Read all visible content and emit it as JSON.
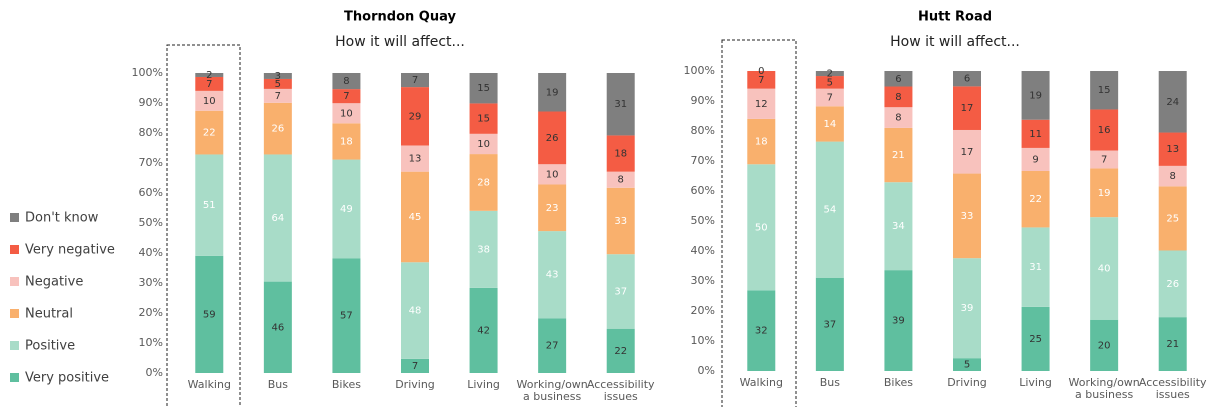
{
  "chart_data": [
    {
      "type": "bar",
      "stacking": "percent",
      "title": "Thorndon Quay",
      "subtitle": "How it will affect...",
      "categories": [
        "Walking",
        "Bus",
        "Bikes",
        "Driving",
        "Living",
        "Working/own a business",
        "Accessibility issues"
      ],
      "ylim": [
        0,
        100
      ],
      "yticks": [
        {
          "value": 0,
          "label": "0%"
        },
        {
          "value": 10,
          "label": "10%"
        },
        {
          "value": 20,
          "label": "20%"
        },
        {
          "value": 30,
          "label": "30%"
        },
        {
          "value": 40,
          "label": "40%"
        },
        {
          "value": 50,
          "label": "50%"
        },
        {
          "value": 60,
          "label": "60%"
        },
        {
          "value": 70,
          "label": "70%"
        },
        {
          "value": 80,
          "label": "80%"
        },
        {
          "value": 90,
          "label": "90%"
        },
        {
          "value": 100,
          "label": "100%"
        }
      ],
      "series": [
        {
          "name": "Very positive",
          "color": "#5fbf9f",
          "values": [
            59,
            46,
            57,
            7,
            42,
            27,
            22
          ]
        },
        {
          "name": "Positive",
          "color": "#a8dcc8",
          "values": [
            51,
            64,
            49,
            48,
            38,
            43,
            37
          ]
        },
        {
          "name": "Neutral",
          "color": "#f9b06d",
          "values": [
            22,
            26,
            18,
            45,
            28,
            23,
            33
          ]
        },
        {
          "name": "Negative",
          "color": "#f8c2bd",
          "values": [
            10,
            7,
            10,
            13,
            10,
            10,
            8
          ]
        },
        {
          "name": "Very negative",
          "color": "#f45c44",
          "values": [
            7,
            5,
            7,
            29,
            15,
            26,
            18
          ]
        },
        {
          "name": "Don't know",
          "color": "#7f7f7f",
          "values": [
            2,
            3,
            8,
            7,
            15,
            19,
            31
          ]
        }
      ]
    },
    {
      "type": "bar",
      "stacking": "percent",
      "title": "Hutt Road",
      "subtitle": "How it will affect...",
      "categories": [
        "Walking",
        "Bus",
        "Bikes",
        "Driving",
        "Living",
        "Working/own a business",
        "Accessibility issues"
      ],
      "ylim": [
        0,
        100
      ],
      "yticks": [
        {
          "value": 0,
          "label": "0%"
        },
        {
          "value": 10,
          "label": "10%"
        },
        {
          "value": 20,
          "label": "20%"
        },
        {
          "value": 30,
          "label": "30%"
        },
        {
          "value": 40,
          "label": "40%"
        },
        {
          "value": 50,
          "label": "50%"
        },
        {
          "value": 60,
          "label": "60%"
        },
        {
          "value": 70,
          "label": "70%"
        },
        {
          "value": 80,
          "label": "80%"
        },
        {
          "value": 90,
          "label": "90%"
        },
        {
          "value": 100,
          "label": "100%"
        }
      ],
      "series": [
        {
          "values": [
            32,
            37,
            39,
            5,
            25,
            20,
            21
          ]
        },
        {
          "values": [
            50,
            54,
            34,
            39,
            31,
            40,
            26
          ]
        },
        {
          "values": [
            18,
            14,
            21,
            33,
            22,
            19,
            25
          ]
        },
        {
          "values": [
            12,
            7,
            8,
            17,
            9,
            7,
            8
          ]
        },
        {
          "values": [
            7,
            5,
            8,
            17,
            11,
            16,
            13
          ]
        },
        {
          "values": [
            0,
            2,
            6,
            6,
            19,
            15,
            24
          ]
        }
      ]
    }
  ]
}
